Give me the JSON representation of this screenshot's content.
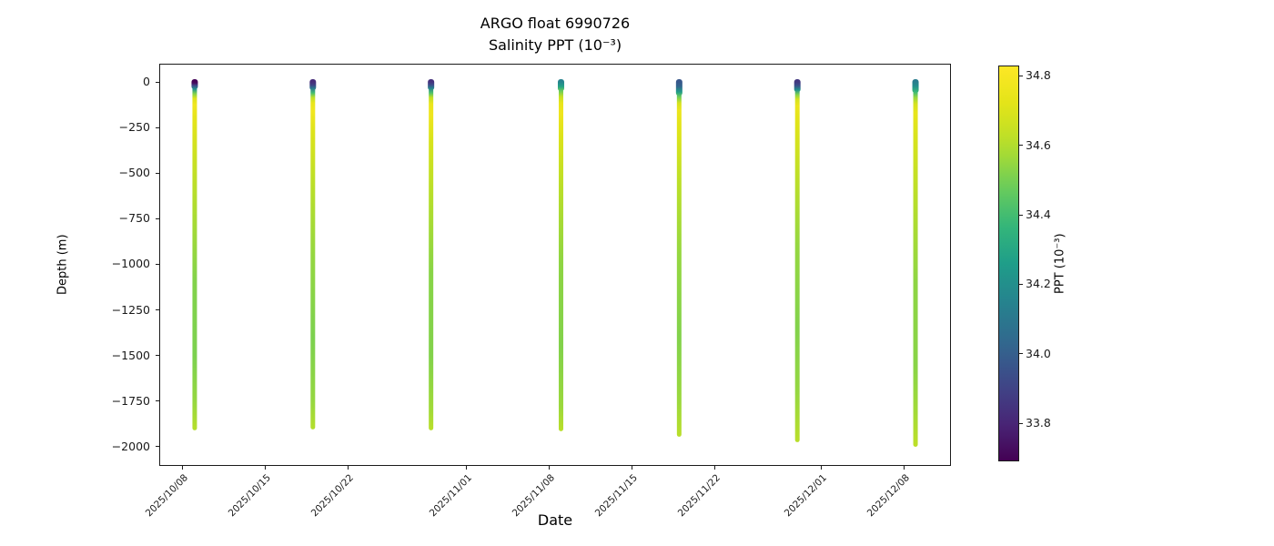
{
  "chart_data": {
    "type": "scatter",
    "title": "ARGO float 6990726",
    "subtitle": "Salinity PPT (10⁻³)",
    "xlabel": "Date",
    "ylabel": "Depth (m)",
    "colormap": "viridis",
    "x_domain": [
      "2025/10/06",
      "2025/12/12"
    ],
    "y_domain": [
      100,
      -2105
    ],
    "x_ticks": [
      "2025/10/08",
      "2025/10/15",
      "2025/10/22",
      "2025/11/01",
      "2025/11/08",
      "2025/11/15",
      "2025/11/22",
      "2025/12/01",
      "2025/12/08"
    ],
    "y_ticks": [
      0,
      -250,
      -500,
      -750,
      -1000,
      -1250,
      -1500,
      -1750,
      -2000
    ],
    "colorbar": {
      "label": "PPT (10⁻³)",
      "vmin": 33.69,
      "vmax": 34.83,
      "ticks": [
        34.8,
        34.6,
        34.4,
        34.2,
        34.0,
        33.8
      ]
    },
    "profiles": [
      {
        "date": "2025/10/09",
        "max_depth": -1900,
        "cap_depth": 40,
        "points": [
          [
            0,
            33.7
          ],
          [
            8,
            33.74
          ],
          [
            20,
            33.92
          ],
          [
            40,
            34.22
          ],
          [
            65,
            34.52
          ],
          [
            90,
            34.7
          ],
          [
            125,
            34.78
          ],
          [
            200,
            34.73
          ],
          [
            400,
            34.66
          ],
          [
            700,
            34.59
          ],
          [
            1100,
            34.52
          ],
          [
            1500,
            34.51
          ],
          [
            1750,
            34.55
          ],
          [
            1900,
            34.6
          ]
        ]
      },
      {
        "date": "2025/10/19",
        "max_depth": -1895,
        "cap_depth": 45,
        "points": [
          [
            0,
            33.82
          ],
          [
            15,
            33.88
          ],
          [
            35,
            34.1
          ],
          [
            60,
            34.4
          ],
          [
            85,
            34.62
          ],
          [
            115,
            34.74
          ],
          [
            160,
            34.78
          ],
          [
            280,
            34.7
          ],
          [
            550,
            34.62
          ],
          [
            950,
            34.55
          ],
          [
            1400,
            34.51
          ],
          [
            1750,
            34.55
          ],
          [
            1895,
            34.6
          ]
        ]
      },
      {
        "date": "2025/10/29",
        "max_depth": -1900,
        "cap_depth": 45,
        "points": [
          [
            0,
            33.84
          ],
          [
            15,
            33.92
          ],
          [
            35,
            34.15
          ],
          [
            60,
            34.42
          ],
          [
            85,
            34.63
          ],
          [
            120,
            34.75
          ],
          [
            180,
            34.77
          ],
          [
            320,
            34.69
          ],
          [
            650,
            34.6
          ],
          [
            1050,
            34.53
          ],
          [
            1500,
            34.52
          ],
          [
            1800,
            34.57
          ],
          [
            1900,
            34.61
          ]
        ]
      },
      {
        "date": "2025/11/09",
        "max_depth": -1905,
        "cap_depth": 50,
        "points": [
          [
            0,
            34.15
          ],
          [
            25,
            34.28
          ],
          [
            50,
            34.48
          ],
          [
            80,
            34.64
          ],
          [
            115,
            34.74
          ],
          [
            170,
            34.77
          ],
          [
            300,
            34.7
          ],
          [
            600,
            34.61
          ],
          [
            1000,
            34.54
          ],
          [
            1450,
            34.52
          ],
          [
            1780,
            34.56
          ],
          [
            1905,
            34.61
          ]
        ]
      },
      {
        "date": "2025/11/19",
        "max_depth": -1935,
        "cap_depth": 75,
        "points": [
          [
            0,
            33.97
          ],
          [
            25,
            34.02
          ],
          [
            55,
            34.25
          ],
          [
            85,
            34.5
          ],
          [
            115,
            34.68
          ],
          [
            155,
            34.76
          ],
          [
            260,
            34.71
          ],
          [
            550,
            34.62
          ],
          [
            950,
            34.55
          ],
          [
            1400,
            34.52
          ],
          [
            1750,
            34.56
          ],
          [
            1935,
            34.61
          ]
        ]
      },
      {
        "date": "2025/11/29",
        "max_depth": -1965,
        "cap_depth": 55,
        "points": [
          [
            0,
            33.86
          ],
          [
            20,
            33.94
          ],
          [
            45,
            34.22
          ],
          [
            70,
            34.52
          ],
          [
            95,
            34.68
          ],
          [
            130,
            34.76
          ],
          [
            230,
            34.71
          ],
          [
            500,
            34.63
          ],
          [
            900,
            34.55
          ],
          [
            1350,
            34.52
          ],
          [
            1700,
            34.55
          ],
          [
            1965,
            34.61
          ]
        ]
      },
      {
        "date": "2025/12/09",
        "max_depth": -1990,
        "cap_depth": 60,
        "points": [
          [
            0,
            34.12
          ],
          [
            25,
            34.2
          ],
          [
            55,
            34.38
          ],
          [
            85,
            34.55
          ],
          [
            120,
            34.68
          ],
          [
            170,
            34.74
          ],
          [
            300,
            34.69
          ],
          [
            650,
            34.61
          ],
          [
            1100,
            34.54
          ],
          [
            1550,
            34.53
          ],
          [
            1800,
            34.57
          ],
          [
            1990,
            34.62
          ]
        ]
      }
    ]
  }
}
